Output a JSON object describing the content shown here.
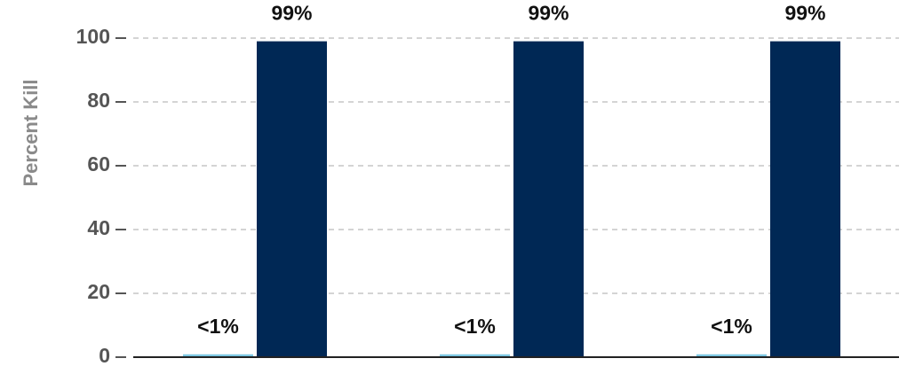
{
  "chart_data": {
    "type": "bar",
    "y_label": "Percent Kill",
    "categories": [
      null,
      null,
      null
    ],
    "series": [
      {
        "color": "#7ec8e3",
        "values": [
          0.9,
          0.9,
          0.9
        ],
        "value_labels": [
          "<1%",
          "<1%",
          "<1%"
        ]
      },
      {
        "color": "#002855",
        "values": [
          99,
          99,
          99
        ],
        "value_labels": [
          "99%",
          "99%",
          "99%"
        ]
      }
    ],
    "ylim": [
      0,
      100
    ],
    "yticks": [
      0,
      20,
      40,
      60,
      80,
      100
    ],
    "grid": true
  }
}
